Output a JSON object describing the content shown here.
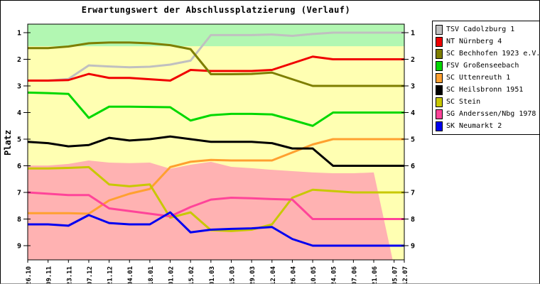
{
  "chart_data": {
    "type": "line",
    "title": "Erwartungswert der Abschlussplatzierung (Verlauf)",
    "ylabel": "Platz",
    "y_ticks": [
      1,
      2,
      3,
      4,
      5,
      6,
      7,
      8,
      9
    ],
    "ylim": [
      0.68,
      9.53
    ],
    "y_axis_direction": "inverted (Platz 1 on top)",
    "grid": false,
    "legend_position": "outside-right",
    "x_dates": [
      "26.10",
      "09.11",
      "23.11",
      "07.12",
      "21.12",
      "04.01",
      "18.01",
      "01.02",
      "15.02",
      "01.03",
      "15.03",
      "29.03",
      "12.04",
      "26.04",
      "10.05",
      "24.05",
      "07.06",
      "21.06",
      "05.07",
      "12.07"
    ],
    "x_day_offsets": [
      0,
      14,
      28,
      42,
      56,
      70,
      84,
      98,
      112,
      126,
      140,
      154,
      168,
      182,
      196,
      210,
      224,
      238,
      252,
      259
    ],
    "series": [
      {
        "name": "TSV Cadolzburg 1",
        "color": "#C0C0C0",
        "values": [
          2.8,
          2.8,
          2.74,
          2.23,
          2.27,
          2.3,
          2.28,
          2.2,
          2.05,
          1.09,
          1.09,
          1.09,
          1.07,
          1.12,
          1.05,
          1.0,
          1.0,
          1.0,
          1.0,
          1.0
        ]
      },
      {
        "name": "NT Nürnberg 4",
        "color": "#F00000",
        "values": [
          2.8,
          2.8,
          2.78,
          2.55,
          2.7,
          2.7,
          2.75,
          2.8,
          2.4,
          2.44,
          2.44,
          2.44,
          2.4,
          2.15,
          1.9,
          2.0,
          2.0,
          2.0,
          2.0,
          2.0
        ]
      },
      {
        "name": "SC Bechhofen 1923 e.V.",
        "color": "#7E7E00",
        "values": [
          1.58,
          1.58,
          1.52,
          1.4,
          1.37,
          1.37,
          1.4,
          1.47,
          1.62,
          2.56,
          2.56,
          2.55,
          2.5,
          2.75,
          3.0,
          3.0,
          3.0,
          3.0,
          3.0,
          3.0
        ]
      },
      {
        "name": "FSV Großenseebach",
        "color": "#00D800",
        "values": [
          3.25,
          3.27,
          3.3,
          4.2,
          3.78,
          3.78,
          3.79,
          3.8,
          4.3,
          4.1,
          4.05,
          4.05,
          4.07,
          4.28,
          4.5,
          4.0,
          4.0,
          4.0,
          4.0,
          4.0
        ]
      },
      {
        "name": "SC Uttenreuth 1",
        "color": "#FFA030",
        "values": [
          7.78,
          7.78,
          7.78,
          7.8,
          7.3,
          7.05,
          6.87,
          6.05,
          5.85,
          5.78,
          5.8,
          5.8,
          5.8,
          5.5,
          5.2,
          5.0,
          5.0,
          5.0,
          5.0,
          5.0
        ]
      },
      {
        "name": "SC Heilsbronn 1951",
        "color": "#000000",
        "values": [
          5.1,
          5.15,
          5.27,
          5.22,
          4.95,
          5.05,
          5.0,
          4.9,
          5.0,
          5.1,
          5.1,
          5.1,
          5.15,
          5.35,
          5.35,
          6.0,
          6.0,
          6.0,
          6.0,
          6.0
        ]
      },
      {
        "name": "SC Stein",
        "color": "#C8C800",
        "values": [
          6.1,
          6.1,
          6.08,
          6.05,
          6.7,
          6.77,
          6.7,
          7.95,
          7.75,
          8.42,
          8.45,
          8.4,
          8.2,
          7.2,
          6.9,
          6.95,
          7.0,
          7.0,
          7.0,
          7.0
        ]
      },
      {
        "name": "SG Anderssen/Nbg 1978 1",
        "color": "#FF4499",
        "values": [
          7.0,
          7.05,
          7.1,
          7.1,
          7.6,
          7.7,
          7.8,
          7.9,
          7.55,
          7.27,
          7.2,
          7.22,
          7.25,
          7.27,
          8.0,
          8.0,
          8.0,
          8.0,
          8.0,
          8.0
        ]
      },
      {
        "name": "SK Neumarkt 2",
        "color": "#0000F0",
        "values": [
          8.2,
          8.2,
          8.25,
          7.85,
          8.15,
          8.2,
          8.2,
          7.75,
          8.5,
          8.4,
          8.37,
          8.35,
          8.3,
          8.75,
          9.0,
          9.0,
          9.0,
          9.0,
          9.0,
          9.0
        ]
      }
    ],
    "zones": {
      "promotion_color": "#B2F7B2",
      "neutral_color": "#FFFFB2",
      "relegation_color": "#FFB2B2",
      "promotion_boundary_platz": 1.51,
      "relegation_boundary_platz": [
        5.99,
        5.99,
        5.93,
        5.8,
        5.88,
        5.9,
        5.88,
        6.11,
        5.96,
        5.85,
        6.04,
        6.09,
        6.15,
        6.2,
        6.25,
        6.28,
        6.28,
        6.25
      ],
      "relegation_boundary_days": [
        0,
        14,
        28,
        42,
        56,
        70,
        84,
        98,
        112,
        126,
        140,
        154,
        168,
        182,
        196,
        210,
        224,
        238
      ],
      "relegation_zone_end_day": 251
    }
  }
}
